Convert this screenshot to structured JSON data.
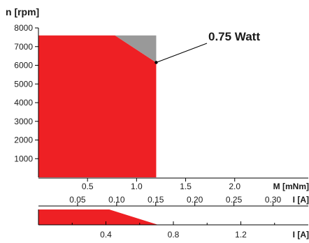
{
  "chart_data": {
    "type": "area",
    "ylabel": "n [rpm]",
    "xlabel_torque": "M [mNm]",
    "xlabel_current": "I [A]",
    "xlabel_current_lower": "I [A]",
    "ylim": [
      0,
      8000
    ],
    "y_ticks": [
      1000,
      2000,
      3000,
      4000,
      5000,
      6000,
      7000,
      8000
    ],
    "torque_ticks": [
      0.5,
      1.0,
      1.5,
      2.0
    ],
    "torque_tick_labels": [
      "0.5",
      "1.0",
      "1.5",
      "2.0"
    ],
    "current_ticks": [
      0.05,
      0.1,
      0.15,
      0.2,
      0.25,
      0.3
    ],
    "current_tick_labels": [
      "0.05",
      "0.10",
      "0.15",
      "0.20",
      "0.25",
      "0.30"
    ],
    "torque_max": 2.75,
    "current_per_torque": 0.1255,
    "operating_range": {
      "max_speed": 7600,
      "max_torque": 1.2,
      "boundary": [
        [
          0,
          7600
        ],
        [
          0.78,
          7600
        ],
        [
          1.2,
          6150
        ],
        [
          1.2,
          0
        ],
        [
          0,
          0
        ]
      ],
      "color": "#ee2024"
    },
    "short_term_region": {
      "polygon": [
        [
          0.78,
          7600
        ],
        [
          1.2,
          7600
        ],
        [
          1.2,
          6150
        ]
      ],
      "color": "#999999"
    },
    "annotation": {
      "text": "0.75 Watt",
      "point": [
        1.2,
        6150
      ]
    },
    "lower_axis": {
      "ticks": [
        0.4,
        0.8,
        1.2
      ],
      "tick_labels": [
        "0.4",
        "0.8",
        "1.2"
      ],
      "minor_ticks": [
        0.2,
        0.6,
        1.0,
        1.4
      ],
      "max": 1.6,
      "continuous_current": 0.42,
      "peak_current": 0.71,
      "marker_current": 0.04,
      "marker_color": "#ee2024"
    }
  }
}
